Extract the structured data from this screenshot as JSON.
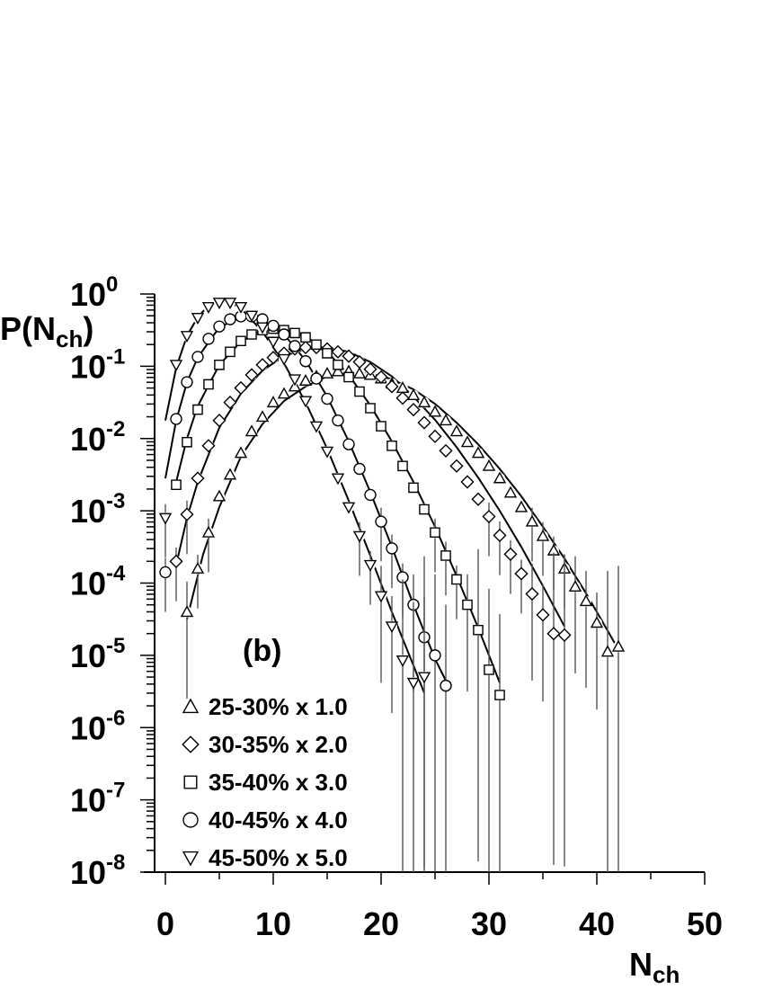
{
  "chart_data": {
    "type": "scatter",
    "panel_label": "(b)",
    "xlabel": {
      "main": "N",
      "sub": "ch"
    },
    "ylabel": {
      "main": "P(N",
      "sub": "ch",
      "close": ")"
    },
    "y_scale": "log",
    "xlim": [
      0,
      50
    ],
    "ylim_exp": [
      -8,
      0
    ],
    "x_ticks": [
      0,
      10,
      20,
      30,
      40,
      50
    ],
    "y_ticks": [
      {
        "base": "10",
        "exp": "0",
        "value": 0
      },
      {
        "base": "10",
        "exp": "-1",
        "value": -1
      },
      {
        "base": "10",
        "exp": "-2",
        "value": -2
      },
      {
        "base": "10",
        "exp": "-3",
        "value": -3
      },
      {
        "base": "10",
        "exp": "-4",
        "value": -4
      },
      {
        "base": "10",
        "exp": "-5",
        "value": -5
      },
      {
        "base": "10",
        "exp": "-6",
        "value": -6
      },
      {
        "base": "10",
        "exp": "-7",
        "value": -7
      },
      {
        "base": "10",
        "exp": "-8",
        "value": -8
      }
    ],
    "legend_position": "bottom-left",
    "grid": false,
    "series": [
      {
        "name": "25-30% x 1.0",
        "marker": "triangle-up",
        "x": [
          2,
          3,
          4,
          5,
          6,
          7,
          8,
          9,
          10,
          11,
          12,
          13,
          14,
          15,
          16,
          17,
          18,
          19,
          20,
          21,
          22,
          23,
          24,
          25,
          26,
          27,
          28,
          29,
          30,
          31,
          32,
          33,
          34,
          35,
          36,
          37,
          38,
          39,
          40,
          41,
          42
        ],
        "log10_y": [
          -4.4,
          -3.8,
          -3.3,
          -2.8,
          -2.5,
          -2.2,
          -1.9,
          -1.7,
          -1.5,
          -1.38,
          -1.28,
          -1.2,
          -1.14,
          -1.1,
          -1.07,
          -1.07,
          -1.1,
          -1.12,
          -1.17,
          -1.24,
          -1.3,
          -1.4,
          -1.5,
          -1.63,
          -1.75,
          -1.9,
          -2.05,
          -2.2,
          -2.38,
          -2.55,
          -2.75,
          -2.95,
          -3.15,
          -3.35,
          -3.55,
          -3.8,
          -4.05,
          -4.25,
          -4.55,
          -4.95,
          -4.88
        ],
        "fit_x": [
          2,
          3.5,
          5,
          7,
          9,
          11,
          13,
          15,
          17,
          19,
          21,
          23,
          25,
          27,
          29,
          31,
          33,
          35,
          37,
          39,
          41,
          42
        ],
        "fit_log10_y": [
          -4.5,
          -3.6,
          -2.95,
          -2.25,
          -1.8,
          -1.48,
          -1.28,
          -1.14,
          -1.09,
          -1.1,
          -1.18,
          -1.32,
          -1.52,
          -1.78,
          -2.08,
          -2.42,
          -2.8,
          -3.22,
          -3.66,
          -4.14,
          -4.66,
          -4.92
        ]
      },
      {
        "name": "30-35% x 2.0",
        "marker": "diamond",
        "x": [
          1,
          2,
          3,
          4,
          5,
          6,
          7,
          8,
          9,
          10,
          11,
          12,
          13,
          14,
          15,
          16,
          17,
          18,
          19,
          20,
          21,
          22,
          23,
          24,
          25,
          26,
          27,
          28,
          29,
          30,
          31,
          32,
          33,
          34,
          35,
          36,
          37
        ],
        "log10_y": [
          -3.7,
          -3.05,
          -2.55,
          -2.1,
          -1.75,
          -1.5,
          -1.3,
          -1.12,
          -0.98,
          -0.88,
          -0.82,
          -0.76,
          -0.74,
          -0.74,
          -0.76,
          -0.8,
          -0.86,
          -0.94,
          -1.04,
          -1.15,
          -1.28,
          -1.44,
          -1.6,
          -1.78,
          -1.97,
          -2.17,
          -2.38,
          -2.6,
          -2.84,
          -3.08,
          -3.34,
          -3.6,
          -3.87,
          -4.15,
          -4.44,
          -4.7,
          -4.72
        ],
        "fit_x": [
          1,
          2,
          3,
          5,
          7,
          9,
          11,
          13,
          15,
          17,
          19,
          21,
          23,
          25,
          27,
          29,
          31,
          33,
          35,
          37
        ],
        "fit_log10_y": [
          -3.75,
          -3.1,
          -2.6,
          -1.85,
          -1.38,
          -1.06,
          -0.86,
          -0.76,
          -0.74,
          -0.8,
          -0.94,
          -1.14,
          -1.42,
          -1.74,
          -2.12,
          -2.54,
          -3.0,
          -3.5,
          -4.04,
          -4.6
        ]
      },
      {
        "name": "35-40% x 3.0",
        "marker": "square",
        "x": [
          1,
          2,
          3,
          4,
          5,
          6,
          7,
          8,
          9,
          10,
          11,
          12,
          13,
          14,
          15,
          16,
          17,
          18,
          19,
          20,
          21,
          22,
          23,
          24,
          25,
          26,
          27,
          28,
          29,
          30,
          31
        ],
        "log10_y": [
          -2.64,
          -2.05,
          -1.6,
          -1.25,
          -0.98,
          -0.8,
          -0.65,
          -0.56,
          -0.5,
          -0.48,
          -0.5,
          -0.54,
          -0.6,
          -0.7,
          -0.82,
          -0.98,
          -1.15,
          -1.35,
          -1.58,
          -1.83,
          -2.1,
          -2.38,
          -2.68,
          -2.98,
          -3.3,
          -3.62,
          -3.95,
          -4.3,
          -4.65,
          -5.2,
          -5.55
        ],
        "fit_x": [
          1,
          2,
          3,
          5,
          7,
          9,
          11,
          13,
          15,
          17,
          19,
          21,
          23,
          25,
          27,
          29,
          31
        ],
        "fit_log10_y": [
          -2.6,
          -2.0,
          -1.55,
          -0.98,
          -0.66,
          -0.5,
          -0.48,
          -0.58,
          -0.8,
          -1.12,
          -1.54,
          -2.04,
          -2.6,
          -3.22,
          -3.9,
          -4.62,
          -5.38
        ]
      },
      {
        "name": "40-45% x 4.0",
        "marker": "circle",
        "x": [
          0,
          1,
          2,
          3,
          4,
          5,
          6,
          7,
          8,
          9,
          10,
          11,
          12,
          13,
          14,
          15,
          16,
          17,
          18,
          19,
          20,
          21,
          22,
          23,
          24,
          25,
          26
        ],
        "log10_y": [
          -3.85,
          -1.73,
          -1.22,
          -0.87,
          -0.62,
          -0.45,
          -0.35,
          -0.31,
          -0.31,
          -0.35,
          -0.44,
          -0.56,
          -0.72,
          -0.93,
          -1.17,
          -1.45,
          -1.75,
          -2.08,
          -2.42,
          -2.78,
          -3.15,
          -3.52,
          -3.92,
          -4.3,
          -4.75,
          -5.0,
          -5.42
        ],
        "fit_x": [
          0,
          1,
          2,
          3,
          5,
          7,
          9,
          11,
          13,
          15,
          17,
          19,
          21,
          23,
          25,
          26
        ],
        "fit_log10_y": [
          -2.55,
          -1.75,
          -1.22,
          -0.88,
          -0.46,
          -0.32,
          -0.36,
          -0.56,
          -0.92,
          -1.42,
          -2.04,
          -2.74,
          -3.5,
          -4.3,
          -5.05,
          -5.35
        ]
      },
      {
        "name": "45-50% x 5.0",
        "marker": "triangle-down",
        "x": [
          0,
          1,
          2,
          3,
          4,
          5,
          6,
          7,
          8,
          9,
          10,
          11,
          12,
          13,
          14,
          15,
          16,
          17,
          18,
          19,
          20,
          21,
          22,
          23,
          24
        ],
        "log10_y": [
          -3.1,
          -0.98,
          -0.58,
          -0.33,
          -0.18,
          -0.12,
          -0.12,
          -0.18,
          -0.3,
          -0.46,
          -0.66,
          -0.9,
          -1.18,
          -1.48,
          -1.83,
          -2.18,
          -2.55,
          -2.95,
          -3.35,
          -3.75,
          -4.18,
          -4.6,
          -5.07,
          -5.38,
          -5.3
        ],
        "fit_x": [
          0,
          1,
          2,
          3,
          4,
          5,
          6,
          7,
          9,
          11,
          13,
          15,
          17,
          19,
          21,
          23,
          24
        ],
        "fit_log10_y": [
          -1.75,
          -1.02,
          -0.58,
          -0.32,
          -0.16,
          -0.1,
          -0.12,
          -0.2,
          -0.52,
          -0.96,
          -1.5,
          -2.14,
          -2.86,
          -3.62,
          -4.4,
          -5.14,
          -5.52
        ]
      }
    ]
  }
}
